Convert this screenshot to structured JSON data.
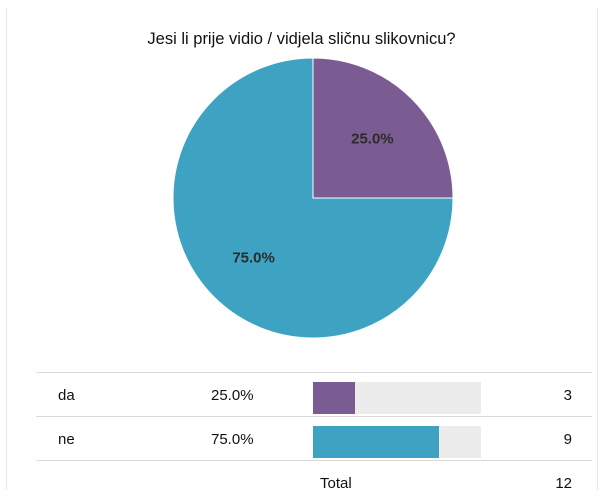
{
  "chart_data": {
    "type": "pie",
    "title": "Jesi li prije vidio / vidjela sličnu slikovnicu?",
    "slices": [
      {
        "label": "da",
        "value": 3,
        "percent_label": "25.0%",
        "color": "#7b5c92"
      },
      {
        "label": "ne",
        "value": 9,
        "percent_label": "75.0%",
        "color": "#3ea3c3"
      }
    ]
  },
  "table": {
    "rows": [
      {
        "label": "da",
        "percent": "25.0%",
        "count": "3",
        "fraction": 0.25,
        "color": "#7b5c92"
      },
      {
        "label": "ne",
        "percent": "75.0%",
        "count": "9",
        "fraction": 0.75,
        "color": "#3ea3c3"
      }
    ],
    "total_label": "Total",
    "total_value": "12"
  }
}
